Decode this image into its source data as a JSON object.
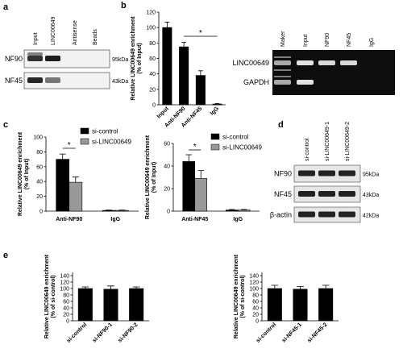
{
  "panels": [
    "a",
    "b",
    "c",
    "d",
    "e"
  ],
  "blot_a": {
    "lanes": [
      "Input",
      "LINC00649",
      "Antisense",
      "Beads"
    ],
    "rows": [
      {
        "label": "NF90",
        "size": "95kDa"
      },
      {
        "label": "NF45",
        "size": "43kDa"
      }
    ]
  },
  "gel_b": {
    "lanes": [
      "Maker",
      "Input",
      "NF90",
      "NF45",
      "IgG"
    ],
    "rows": [
      "LINC00649",
      "GAPDH"
    ]
  },
  "blot_d": {
    "lanes": [
      "si-control",
      "si-LINC00649-1",
      "si-LINC00649-2"
    ],
    "rows": [
      {
        "label": "NF90",
        "size": "95kDa"
      },
      {
        "label": "NF45",
        "size": "43kDa"
      },
      {
        "label": "β-actin",
        "size": "42kDa"
      }
    ]
  },
  "chart_data": [
    {
      "type": "bar",
      "ylabel": [
        "Relative LINC00649 enrichment",
        "(% of Input)"
      ],
      "categories": [
        "Input",
        "Anti-NF90",
        "Anti-NF45",
        "IgG"
      ],
      "color": "#000000",
      "values": [
        100,
        75,
        38,
        1
      ],
      "errors": [
        7,
        6,
        6,
        0.5
      ],
      "ylim": [
        0,
        120
      ],
      "yticks": [
        0,
        20,
        40,
        60,
        80,
        100,
        120
      ],
      "significance": "*"
    },
    {
      "type": "bar",
      "ylabel": [
        "Relative LINC00649 enrichment",
        "(% of Input)"
      ],
      "categories": [
        "Anti-NF90",
        "IgG"
      ],
      "series": [
        {
          "name": "si-control",
          "color": "#000000",
          "values": [
            70,
            1
          ],
          "errors": [
            7,
            0.5
          ]
        },
        {
          "name": "si-LINC00649",
          "color": "#999999",
          "values": [
            39,
            1
          ],
          "errors": [
            7,
            0.5
          ]
        }
      ],
      "ylim": [
        0,
        100
      ],
      "yticks": [
        0,
        20,
        40,
        60,
        80,
        100
      ],
      "significance": "*"
    },
    {
      "type": "bar",
      "ylabel": [
        "Relative LINC00649 enrichment",
        "(% of Input)"
      ],
      "categories": [
        "Anti-NF45",
        "IgG"
      ],
      "series": [
        {
          "name": "si-control",
          "color": "#000000",
          "values": [
            44,
            1
          ],
          "errors": [
            6,
            0.5
          ]
        },
        {
          "name": "si-LINC00649",
          "color": "#999999",
          "values": [
            29,
            1
          ],
          "errors": [
            7,
            0.5
          ]
        }
      ],
      "ylim": [
        0,
        60
      ],
      "yticks": [
        0,
        20,
        40,
        60
      ],
      "significance": "*"
    },
    {
      "type": "bar",
      "ylabel": [
        "Relative LINC00649 enrichment",
        "(% of si-control)"
      ],
      "categories": [
        "si-control",
        "si-NF90-1",
        "si-NF90-2"
      ],
      "color": "#000000",
      "values": [
        100,
        98,
        100
      ],
      "errors": [
        5,
        10,
        5
      ],
      "ylim": [
        0,
        150
      ],
      "yticks": [
        0,
        20,
        40,
        60,
        80,
        100,
        120,
        140
      ]
    },
    {
      "type": "bar",
      "ylabel": [
        "Relative LINC00649 enrichment",
        "(% of si-control)"
      ],
      "categories": [
        "si-control",
        "si-NF45-1",
        "si-NF45-2"
      ],
      "color": "#000000",
      "values": [
        100,
        98,
        100
      ],
      "errors": [
        10,
        8,
        10
      ],
      "ylim": [
        0,
        150
      ],
      "yticks": [
        0,
        20,
        40,
        60,
        80,
        100,
        120,
        140
      ]
    }
  ]
}
